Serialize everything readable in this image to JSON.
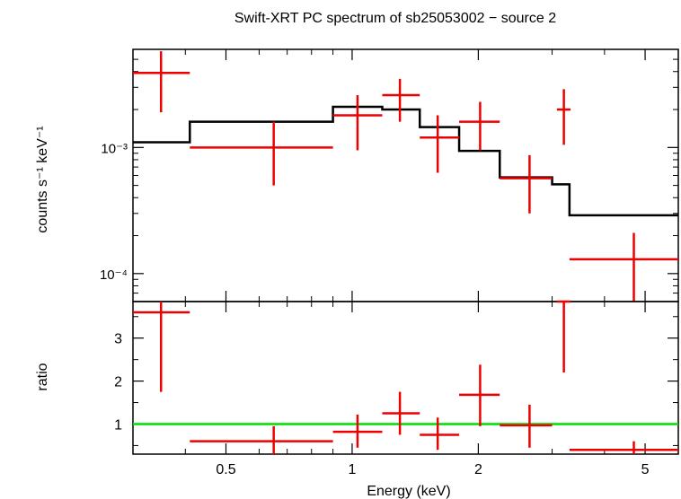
{
  "chart_data": [
    {
      "type": "line",
      "title": "Swift-XRT PC spectrum of sb25053002 − source 2",
      "xlabel": "Energy (keV)",
      "ylabel": "counts s⁻¹ keV⁻¹",
      "xscale": "log",
      "yscale": "log",
      "xlim": [
        0.3,
        6.0
      ],
      "ylim": [
        6e-05,
        0.006
      ],
      "y_ticks": [
        {
          "value": 0.001,
          "label": "10⁻³"
        },
        {
          "value": 0.0001,
          "label": "10⁻⁴"
        }
      ],
      "data": [
        {
          "x": 0.35,
          "xlo": 0.3,
          "xhi": 0.41,
          "y": 0.0039,
          "ylo": 0.0019,
          "yhi": 0.0058
        },
        {
          "x": 0.65,
          "xlo": 0.41,
          "xhi": 0.9,
          "y": 0.001,
          "ylo": 0.0005,
          "yhi": 0.0016
        },
        {
          "x": 1.03,
          "xlo": 0.9,
          "xhi": 1.18,
          "y": 0.0018,
          "ylo": 0.00095,
          "yhi": 0.0026
        },
        {
          "x": 1.3,
          "xlo": 1.18,
          "xhi": 1.45,
          "y": 0.0026,
          "ylo": 0.0016,
          "yhi": 0.0035
        },
        {
          "x": 1.6,
          "xlo": 1.45,
          "xhi": 1.8,
          "y": 0.0012,
          "ylo": 0.00063,
          "yhi": 0.0018
        },
        {
          "x": 2.02,
          "xlo": 1.8,
          "xhi": 2.25,
          "y": 0.0016,
          "ylo": 0.00095,
          "yhi": 0.0023
        },
        {
          "x": 2.65,
          "xlo": 2.25,
          "xhi": 3.0,
          "y": 0.00057,
          "ylo": 0.0003,
          "yhi": 0.00087
        },
        {
          "x": 3.2,
          "xlo": 3.08,
          "xhi": 3.32,
          "y": 0.002,
          "ylo": 0.00105,
          "yhi": 0.0029
        },
        {
          "x": 4.7,
          "xlo": 3.3,
          "xhi": 6.0,
          "y": 0.00013,
          "ylo": 6e-05,
          "yhi": 0.00021
        }
      ],
      "model": [
        {
          "x0": 0.3,
          "x1": 0.41,
          "y": 0.0011
        },
        {
          "x0": 0.41,
          "x1": 0.9,
          "y": 0.0016
        },
        {
          "x0": 0.9,
          "x1": 1.18,
          "y": 0.0021
        },
        {
          "x0": 1.18,
          "x1": 1.45,
          "y": 0.002
        },
        {
          "x0": 1.45,
          "x1": 1.8,
          "y": 0.00145
        },
        {
          "x0": 1.8,
          "x1": 2.25,
          "y": 0.00094
        },
        {
          "x0": 2.25,
          "x1": 3.0,
          "y": 0.00058
        },
        {
          "x0": 3.0,
          "x1": 3.3,
          "y": 0.00051
        },
        {
          "x0": 3.3,
          "x1": 6.0,
          "y": 0.00029
        }
      ],
      "colors": {
        "data": "#ee0000",
        "model": "#000000"
      }
    },
    {
      "type": "line",
      "xlabel": "Energy (keV)",
      "ylabel": "ratio",
      "xscale": "log",
      "xlim": [
        0.3,
        6.0
      ],
      "ylim": [
        0.3,
        3.85
      ],
      "x_ticks": [
        {
          "value": 0.5,
          "label": "0.5"
        },
        {
          "value": 1,
          "label": "1"
        },
        {
          "value": 2,
          "label": "2"
        },
        {
          "value": 5,
          "label": "5"
        }
      ],
      "y_ticks": [
        {
          "value": 1,
          "label": "1"
        },
        {
          "value": 2,
          "label": "2"
        },
        {
          "value": 3,
          "label": "3"
        }
      ],
      "reference_line": {
        "y": 1,
        "color": "#00dd00"
      },
      "data": [
        {
          "x": 0.35,
          "xlo": 0.3,
          "xhi": 0.41,
          "y": 3.6,
          "ylo": 1.75,
          "yhi": 3.85
        },
        {
          "x": 0.65,
          "xlo": 0.41,
          "xhi": 0.9,
          "y": 0.6,
          "ylo": 0.3,
          "yhi": 0.95
        },
        {
          "x": 1.03,
          "xlo": 0.9,
          "xhi": 1.18,
          "y": 0.82,
          "ylo": 0.45,
          "yhi": 1.22
        },
        {
          "x": 1.3,
          "xlo": 1.18,
          "xhi": 1.45,
          "y": 1.25,
          "ylo": 0.75,
          "yhi": 1.75
        },
        {
          "x": 1.6,
          "xlo": 1.45,
          "xhi": 1.8,
          "y": 0.75,
          "ylo": 0.4,
          "yhi": 1.15
        },
        {
          "x": 2.02,
          "xlo": 1.8,
          "xhi": 2.25,
          "y": 1.68,
          "ylo": 0.95,
          "yhi": 2.38
        },
        {
          "x": 2.65,
          "xlo": 2.25,
          "xhi": 3.0,
          "y": 0.97,
          "ylo": 0.45,
          "yhi": 1.45
        },
        {
          "x": 3.2,
          "xlo": 3.08,
          "xhi": 3.32,
          "y": 3.85,
          "ylo": 2.2,
          "yhi": 3.85
        },
        {
          "x": 4.7,
          "xlo": 3.3,
          "xhi": 6.0,
          "y": 0.4,
          "ylo": 0.3,
          "yhi": 0.6
        }
      ],
      "colors": {
        "data": "#ee0000",
        "model": "#00dd00"
      }
    }
  ]
}
